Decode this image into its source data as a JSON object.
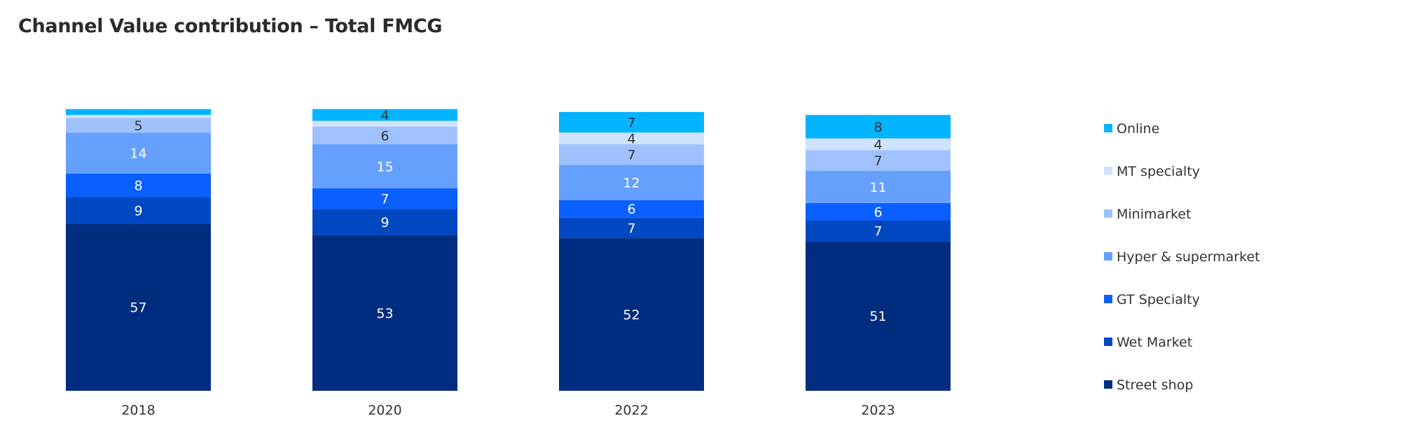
{
  "chart_data": {
    "type": "bar",
    "stacked": true,
    "title": "Channel Value contribution – Total FMCG",
    "categories": [
      "2018",
      "2020",
      "2022",
      "2023"
    ],
    "series": [
      {
        "name": "Street shop",
        "color": "#002d7f",
        "label_color": "#ffffff",
        "values": [
          57,
          53,
          52,
          51
        ]
      },
      {
        "name": "Wet Market",
        "color": "#0047c2",
        "label_color": "#ffffff",
        "values": [
          9,
          9,
          7,
          7
        ]
      },
      {
        "name": "GT Specialty",
        "color": "#0a5fff",
        "label_color": "#ffffff",
        "values": [
          8,
          7,
          6,
          6
        ]
      },
      {
        "name": "Hyper & supermarket",
        "color": "#66a0ff",
        "label_color": "#ffffff",
        "values": [
          14,
          15,
          12,
          11
        ]
      },
      {
        "name": "Minimarket",
        "color": "#9fc2ff",
        "label_color": "#333333",
        "values": [
          5,
          6,
          7,
          7
        ]
      },
      {
        "name": "MT specialty",
        "color": "#cfe2ff",
        "label_color": "#333333",
        "values": [
          1,
          2,
          4,
          4
        ]
      },
      {
        "name": "Online",
        "color": "#00b4ff",
        "label_color": "#333333",
        "values": [
          2,
          4,
          7,
          8
        ]
      }
    ],
    "value_labels": [
      [
        "57",
        "53",
        "52",
        "51"
      ],
      [
        "9",
        "9",
        "7",
        "7"
      ],
      [
        "8",
        "7",
        "6",
        "6"
      ],
      [
        "14",
        "15",
        "12",
        "11"
      ],
      [
        "5",
        "6",
        "7",
        "7"
      ],
      [
        "",
        "",
        "4",
        "4"
      ],
      [
        "",
        "4",
        "7",
        "8"
      ]
    ],
    "legend_order": [
      "Online",
      "MT specialty",
      "Minimarket",
      "Hyper & supermarket",
      "GT Specialty",
      "Wet Market",
      "Street shop"
    ],
    "legend_position": "right",
    "ylim": [
      0,
      100
    ],
    "grid": false,
    "axis_lines": false
  }
}
